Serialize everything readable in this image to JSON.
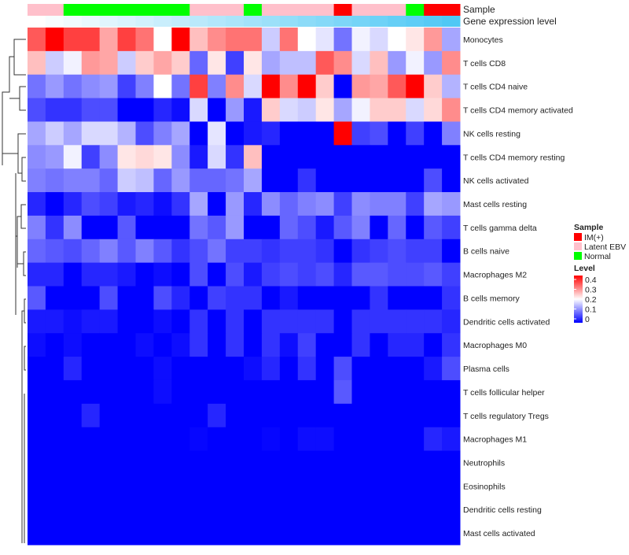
{
  "chart_data": {
    "type": "heatmap",
    "annotation_labels": {
      "sample": "Sample",
      "gene": "Gene expression level"
    },
    "sample_groups": [
      "Latent EBV",
      "Latent EBV",
      "Normal",
      "Normal",
      "Normal",
      "Normal",
      "Normal",
      "Normal",
      "Normal",
      "Latent EBV",
      "Latent EBV",
      "Latent EBV",
      "Normal",
      "Latent EBV",
      "Latent EBV",
      "Latent EBV",
      "Latent EBV",
      "IM(+)",
      "Latent EBV",
      "Latent EBV",
      "Latent EBV",
      "Normal",
      "IM(+)",
      "IM(+)"
    ],
    "sample_colors": {
      "IM(+)": "#ff0000",
      "Latent EBV": "#ffc0cb",
      "Normal": "#00ff00"
    },
    "gene_level_colors": [
      "#ffffff",
      "#4fc8f5"
    ],
    "rows": [
      "Monocytes",
      "T cells CD8",
      "T cells CD4 naive",
      "T cells CD4 memory activated",
      "NK cells resting",
      "T cells CD4 memory resting",
      "NK cells activated",
      "Mast cells resting",
      "T cells gamma delta",
      "B cells naive",
      "Macrophages M2",
      "B cells memory",
      "Dendritic cells activated",
      "Macrophages M0",
      "Plasma cells",
      "T cells follicular helper",
      "T cells regulatory  Tregs",
      "Macrophages M1",
      "Neutrophils",
      "Eosinophils",
      "Dendritic cells resting",
      "Mast cells activated"
    ],
    "values": [
      [
        0.33,
        0.4,
        0.35,
        0.35,
        0.27,
        0.35,
        0.31,
        0.2,
        0.4,
        0.25,
        0.29,
        0.31,
        0.31,
        0.16,
        0.31,
        0.2,
        0.18,
        0.09,
        0.19,
        0.17,
        0.2,
        0.22,
        0.28,
        0.13
      ],
      [
        0.25,
        0.16,
        0.19,
        0.28,
        0.27,
        0.16,
        0.24,
        0.27,
        0.24,
        0.08,
        0.22,
        0.05,
        0.22,
        0.13,
        0.15,
        0.15,
        0.33,
        0.29,
        0.17,
        0.25,
        0.12,
        0.19,
        0.12,
        0.29
      ],
      [
        0.09,
        0.12,
        0.09,
        0.11,
        0.12,
        0.05,
        0.1,
        0.2,
        0.09,
        0.35,
        0.1,
        0.29,
        0.17,
        0.4,
        0.29,
        0.4,
        0.24,
        0.0,
        0.28,
        0.27,
        0.33,
        0.4,
        0.24,
        0.14
      ],
      [
        0.06,
        0.04,
        0.04,
        0.06,
        0.06,
        0.0,
        0.0,
        0.03,
        0.01,
        0.17,
        0.0,
        0.12,
        0.02,
        0.24,
        0.17,
        0.16,
        0.22,
        0.13,
        0.19,
        0.24,
        0.24,
        0.17,
        0.23,
        0.29
      ],
      [
        0.13,
        0.16,
        0.13,
        0.17,
        0.17,
        0.14,
        0.06,
        0.1,
        0.13,
        0.0,
        0.18,
        0.0,
        0.02,
        0.03,
        0,
        0,
        0,
        0.4,
        0.05,
        0.06,
        0,
        0.05,
        0,
        0.1
      ],
      [
        0.11,
        0.12,
        0.19,
        0.05,
        0.11,
        0.22,
        0.23,
        0.22,
        0.11,
        0.02,
        0.17,
        0.04,
        0.25,
        0,
        0,
        0,
        0,
        0,
        0,
        0,
        0,
        0,
        0,
        0
      ],
      [
        0.1,
        0.09,
        0.1,
        0.1,
        0.08,
        0.16,
        0.15,
        0.08,
        0.12,
        0.08,
        0.08,
        0.09,
        0.13,
        0,
        0,
        0.04,
        0,
        0,
        0,
        0,
        0,
        0,
        0.06,
        0
      ],
      [
        0.03,
        0,
        0.03,
        0.06,
        0.05,
        0.02,
        0.03,
        0.01,
        0.04,
        0.13,
        0,
        0.12,
        0.03,
        0.11,
        0.08,
        0.1,
        0.11,
        0.05,
        0.11,
        0.1,
        0.1,
        0.05,
        0.13,
        0.12
      ],
      [
        0.1,
        0.04,
        0.11,
        0,
        0,
        0.07,
        0,
        0,
        0,
        0.09,
        0.07,
        0.12,
        0,
        0,
        0.08,
        0.06,
        0.02,
        0.07,
        0.1,
        0,
        0.08,
        0,
        0.07,
        0.05
      ],
      [
        0.08,
        0.07,
        0.06,
        0.08,
        0.1,
        0.07,
        0.1,
        0.07,
        0.04,
        0.06,
        0.09,
        0.05,
        0.05,
        0.04,
        0.05,
        0.05,
        0.04,
        0,
        0.04,
        0.05,
        0.06,
        0.05,
        0.05,
        0
      ],
      [
        0.03,
        0.03,
        0,
        0.03,
        0.03,
        0.02,
        0,
        0.01,
        0,
        0.06,
        0,
        0.06,
        0.02,
        0.05,
        0.06,
        0.05,
        0.06,
        0.03,
        0.07,
        0.07,
        0.06,
        0.06,
        0.07,
        0.05
      ],
      [
        0.07,
        0,
        0,
        0,
        0.06,
        0,
        0,
        0.06,
        0.03,
        0,
        0.05,
        0.04,
        0.04,
        0,
        0.02,
        0,
        0,
        0,
        0,
        0.04,
        0,
        0,
        0,
        0.04
      ],
      [
        0.02,
        0.02,
        0.01,
        0.02,
        0.02,
        0,
        0,
        0.01,
        0,
        0.04,
        0,
        0.04,
        0,
        0.04,
        0.04,
        0.04,
        0.04,
        0,
        0.04,
        0.04,
        0.04,
        0.04,
        0.04,
        0.03
      ],
      [
        0.01,
        0,
        0.01,
        0,
        0,
        0,
        0.01,
        0,
        0.01,
        0.04,
        0,
        0.04,
        0,
        0.04,
        0.01,
        0.05,
        0,
        0,
        0.04,
        0,
        0.03,
        0.03,
        0,
        0.04
      ],
      [
        0,
        0,
        0.03,
        0,
        0,
        0,
        0,
        0.01,
        0,
        0,
        0,
        0,
        0.01,
        0.03,
        0,
        0.04,
        0,
        0.06,
        0,
        0,
        0,
        0,
        0.02,
        0.06
      ],
      [
        0,
        0,
        0,
        0,
        0,
        0,
        0,
        0.01,
        0,
        0,
        0,
        0,
        0,
        0,
        0,
        0,
        0,
        0.07,
        0,
        0,
        0,
        0,
        0,
        0
      ],
      [
        0,
        0,
        0,
        0.03,
        0,
        0,
        0,
        0,
        0,
        0,
        0.03,
        0,
        0,
        0,
        0,
        0,
        0,
        0,
        0,
        0,
        0,
        0,
        0,
        0
      ],
      [
        0,
        0,
        0,
        0,
        0,
        0,
        0,
        0,
        0,
        0.005,
        0,
        0,
        0,
        0.005,
        0,
        0.01,
        0.01,
        0,
        0,
        0,
        0,
        0,
        0.03,
        0.02
      ],
      [
        0,
        0,
        0,
        0,
        0,
        0,
        0,
        0,
        0,
        0,
        0,
        0,
        0,
        0,
        0,
        0,
        0,
        0,
        0,
        0,
        0,
        0,
        0,
        0
      ],
      [
        0,
        0,
        0,
        0,
        0,
        0,
        0,
        0,
        0,
        0,
        0,
        0,
        0,
        0,
        0,
        0,
        0,
        0,
        0,
        0,
        0,
        0,
        0,
        0
      ],
      [
        0,
        0,
        0,
        0,
        0,
        0,
        0,
        0,
        0,
        0,
        0,
        0,
        0,
        0,
        0,
        0,
        0,
        0,
        0,
        0,
        0,
        0,
        0,
        0
      ],
      [
        0,
        0,
        0,
        0,
        0,
        0,
        0,
        0,
        0,
        0,
        0,
        0,
        0,
        0,
        0,
        0,
        0,
        0,
        0,
        0,
        0,
        0,
        0,
        0
      ]
    ],
    "color_scale": {
      "min": 0,
      "mid": 0.2,
      "max": 0.4,
      "low": "#0000ff",
      "midcolor": "#ffffff",
      "high": "#ff0000"
    },
    "legend": {
      "sample_title": "Sample",
      "sample_entries": [
        "IM(+)",
        "Latent EBV",
        "Normal"
      ],
      "level_title": "Level",
      "level_ticks": [
        "0.4",
        "0.3",
        "0.2",
        "0.1",
        "0"
      ],
      "placement": "right"
    }
  }
}
